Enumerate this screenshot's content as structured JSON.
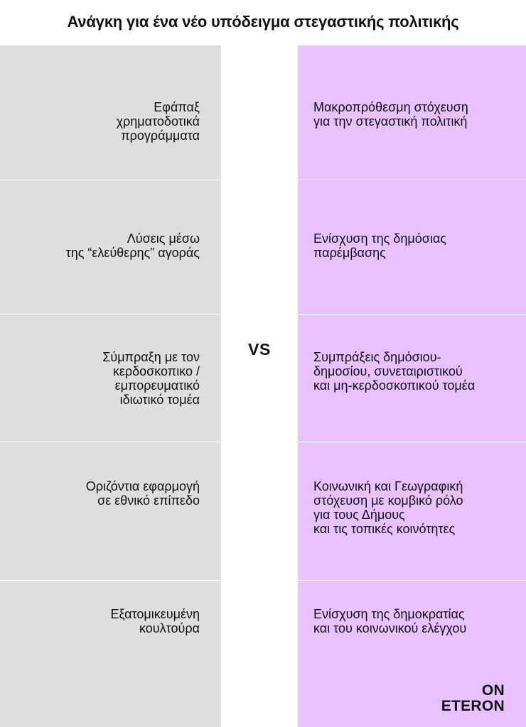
{
  "title": "Ανάγκη για ένα νέο υπόδειγμα στεγαστικής πολιτικής",
  "vs_label": "VS",
  "left_items": [
    "Εφάπαξ\nχρηματοδοτικά\nπρογράμματα",
    "Λύσεις μέσω\nτης “ελεύθερης” αγοράς",
    "Σύμπραξη με τον\nκερδοσκοπικο /\nεμπορευματικό\nιδιωτικό τομέα",
    "Οριζόντια εφαρμογή\nσε εθνικό επίπεδο",
    "Εξατομικευμένη\nκουλτούρα"
  ],
  "right_items": [
    "Μακροπρόθεσμη στόχευση\nγια την στεγαστική πολιτική",
    "Ενίσχυση της δημόσιας\n παρέμβασης",
    "Συμπράξεις δημόσιου-\nδημοσίου, συνεταιριστικού\nκαι μη-κερδοσκοπικού τομέα",
    "Κοινωνική και Γεωγραφική\nστόχευση με κομβικό ρόλο\nγια τους Δήμους\nκαι τις τοπικές κοινότητες",
    "Ενίσχυση της δημοκρατίας\nκαι του κοινωνικού ελέγχου"
  ],
  "logo": {
    "line1": "ON",
    "line2": "ETERON"
  },
  "colors": {
    "left_bg": "#dedede",
    "right_bg": "#e8c2ff",
    "text": "#111111"
  }
}
